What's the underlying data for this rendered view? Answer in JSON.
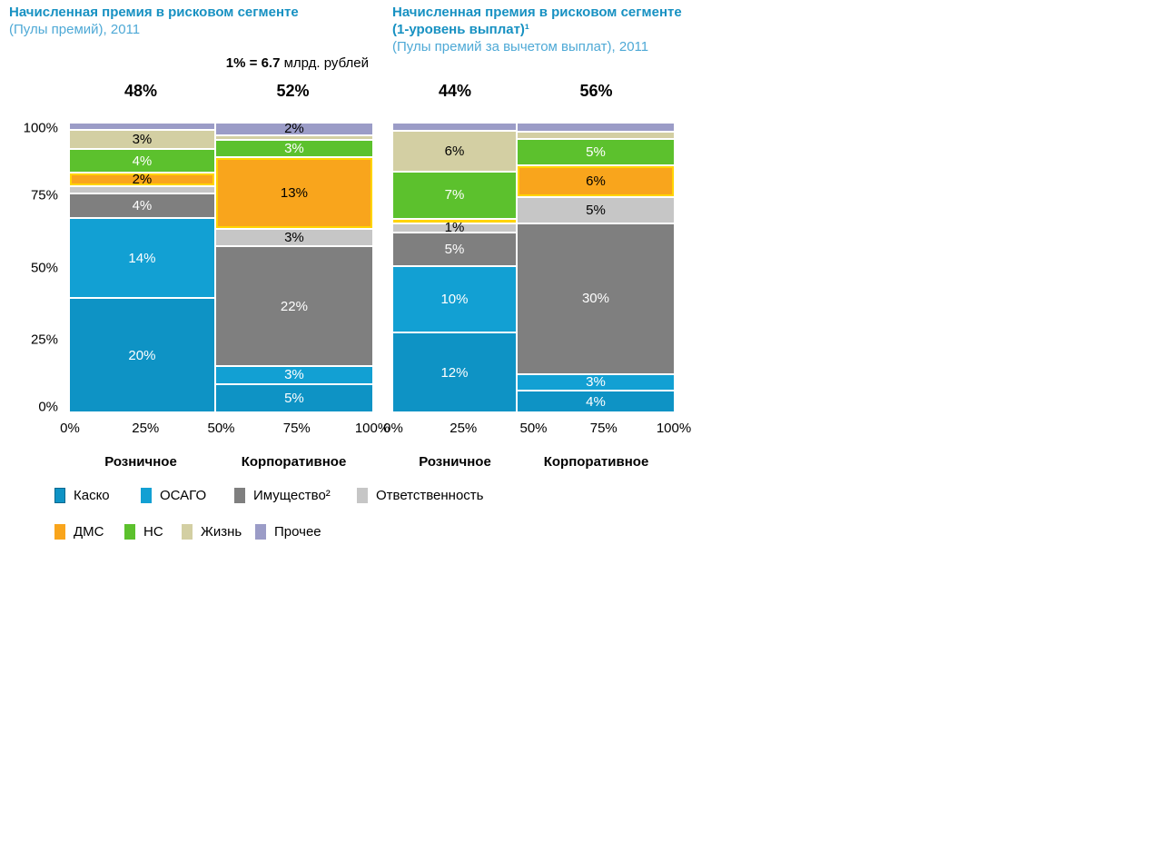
{
  "scale_note": {
    "bold": "1% = 6.7",
    "rest": " млрд. рублей"
  },
  "legend": {
    "items": [
      {
        "name": "Каско",
        "label": "Каско",
        "color": "#0e93c5",
        "swatch_border": "#02688f",
        "text_color": "#ffffff"
      },
      {
        "name": "ОСАГО",
        "label": "ОСАГО",
        "color": "#12a0d3",
        "swatch_border": "#12a0d3",
        "text_color": "#ffffff"
      },
      {
        "name": "Имущество",
        "label": "Имущество²",
        "color": "#7f7f7f",
        "swatch_border": "#7f7f7f",
        "text_color": "#ffffff"
      },
      {
        "name": "Ответственность",
        "label": "Ответственность",
        "color": "#c6c6c6",
        "swatch_border": "#c6c6c6",
        "text_color": "#000000"
      },
      {
        "name": "ДМС",
        "label": "ДМС",
        "color": "#f9a51c",
        "swatch_border": "#f9a51c",
        "text_color": "#000000",
        "inner_border": true
      },
      {
        "name": "НС",
        "label": "НС",
        "color": "#5cc12d",
        "swatch_border": "#5cc12d",
        "text_color": "#ffffff"
      },
      {
        "name": "Жизнь",
        "label": "Жизнь",
        "color": "#d3cfa3",
        "swatch_border": "#d3cfa3",
        "text_color": "#000000",
        "striped": true
      },
      {
        "name": "Прочее",
        "label": "Прочее",
        "color": "#9b9cc7",
        "swatch_border": "#9b9cc7",
        "text_color": "#000000"
      }
    ]
  },
  "chart_data": [
    {
      "type": "mekko",
      "title": "Начисленная премия в рисковом сегменте",
      "title2": "",
      "subtitle": "(Пулы премий), 2011",
      "unit": "% of total premiums, column width = share of segment",
      "y_ticks": [
        "100%",
        "75%",
        "50%",
        "25%",
        "0%"
      ],
      "x_ticks": [
        "0%",
        "25%",
        "50%",
        "75%",
        "100%"
      ],
      "columns": [
        {
          "label": "Розничное",
          "width_pct": 48,
          "header": "48%",
          "segments": [
            {
              "category": "Каско",
              "value": 20,
              "label": "20%"
            },
            {
              "category": "ОСАГО",
              "value": 14,
              "label": "14%"
            },
            {
              "category": "Имущество",
              "value": 4,
              "label": "4%"
            },
            {
              "category": "Ответственность",
              "value": 1,
              "label": ""
            },
            {
              "category": "ДМС",
              "value": 2,
              "label": "2%"
            },
            {
              "category": "НС",
              "value": 4,
              "label": "4%"
            },
            {
              "category": "Жизнь",
              "value": 3,
              "label": "3%"
            },
            {
              "category": "Прочее",
              "value": 1,
              "label": ""
            }
          ]
        },
        {
          "label": "Корпоративное",
          "width_pct": 52,
          "header": "52%",
          "segments": [
            {
              "category": "Каско",
              "value": 5,
              "label": "5%"
            },
            {
              "category": "ОСАГО",
              "value": 3,
              "label": "3%"
            },
            {
              "category": "Имущество",
              "value": 22,
              "label": "22%"
            },
            {
              "category": "Ответственность",
              "value": 3,
              "label": "3%"
            },
            {
              "category": "ДМС",
              "value": 13,
              "label": "13%"
            },
            {
              "category": "НС",
              "value": 3,
              "label": "3%"
            },
            {
              "category": "Жизнь",
              "value": 0.5,
              "label": ""
            },
            {
              "category": "Прочее",
              "value": 2,
              "label": "2%"
            }
          ]
        }
      ]
    },
    {
      "type": "mekko",
      "title": "Начисленная премия в рисковом сегменте",
      "title2": "(1-уровень выплат)¹",
      "subtitle": "(Пулы премий за вычетом выплат), 2011",
      "unit": "% of total premiums net of payouts, column width = share of segment",
      "y_ticks": [],
      "x_ticks": [
        "0%",
        "25%",
        "50%",
        "75%",
        "100%"
      ],
      "columns": [
        {
          "label": "Розничное",
          "width_pct": 44,
          "header": "44%",
          "segments": [
            {
              "category": "Каско",
              "value": 12,
              "label": "12%"
            },
            {
              "category": "ОСАГО",
              "value": 10,
              "label": "10%"
            },
            {
              "category": "Имущество",
              "value": 5,
              "label": "5%"
            },
            {
              "category": "Ответственность",
              "value": 1,
              "label": "1%"
            },
            {
              "category": "ДМС",
              "value": 0.5,
              "label": ""
            },
            {
              "category": "НС",
              "value": 7,
              "label": "7%"
            },
            {
              "category": "Жизнь",
              "value": 6,
              "label": "6%"
            },
            {
              "category": "Прочее",
              "value": 1,
              "label": ""
            }
          ]
        },
        {
          "label": "Корпоративное",
          "width_pct": 56,
          "header": "56%",
          "segments": [
            {
              "category": "Каско",
              "value": 4,
              "label": "4%"
            },
            {
              "category": "ОСАГО",
              "value": 3,
              "label": "3%"
            },
            {
              "category": "Имущество",
              "value": 30,
              "label": "30%"
            },
            {
              "category": "Ответственность",
              "value": 5,
              "label": "5%"
            },
            {
              "category": "ДМС",
              "value": 6,
              "label": "6%"
            },
            {
              "category": "НС",
              "value": 5,
              "label": "5%"
            },
            {
              "category": "Жизнь",
              "value": 1,
              "label": ""
            },
            {
              "category": "Прочее",
              "value": 1.5,
              "label": ""
            }
          ]
        }
      ]
    }
  ]
}
